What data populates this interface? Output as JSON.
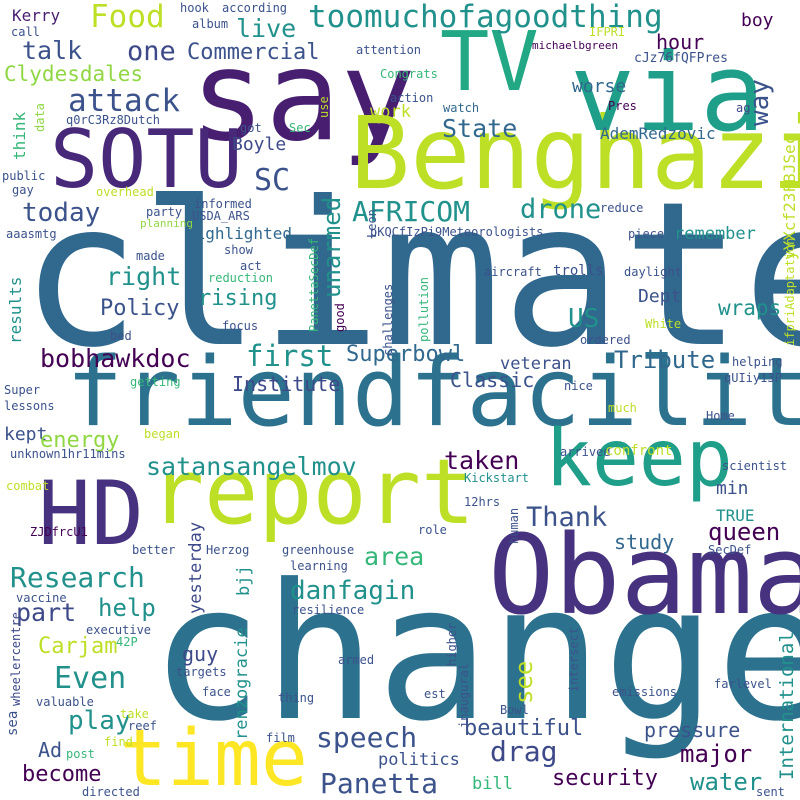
{
  "palette": {
    "dark_purple": "#440154",
    "indigo": "#3b528b",
    "blue": "#31688e",
    "teal": "#21918c",
    "green": "#35b779",
    "lime": "#90d743",
    "yellow": "#bddf26",
    "bright_yellow": "#fde725",
    "background": "#ffffff"
  },
  "words": {
    "climate": "climate",
    "change": "change",
    "friendfacility": "friendfacility",
    "obama": "Obama",
    "say": "say",
    "benghazi": "Benghazi",
    "via": "via",
    "tv": "TV",
    "report": "report",
    "time": "time",
    "sotu": "SOTU",
    "hd": "HD",
    "keep": "keep",
    "toomuchofagoodthing": "toomuchofagoodthing",
    "food": "Food",
    "live": "live",
    "talk": "talk",
    "one": "one",
    "commercial": "Commercial",
    "kerry": "Kerry",
    "clydesdales": "Clydesdales",
    "attack": "attack",
    "state": "State",
    "worse": "worse",
    "hour": "hour",
    "way": "way",
    "boy": "boy",
    "call": "call",
    "hook": "hook",
    "album": "album",
    "according": "according",
    "ifpri": "IFPRI",
    "michaelbgreen": "michaelbgreen",
    "cjz76fqfpres": "cJz76fQFPres",
    "attention": "attention",
    "congrats": "Congrats",
    "action": "action",
    "watch": "watch",
    "pres": "Pres",
    "ag": "ag",
    "q0rc3rz8dutch": "q0rC3Rz8Dutch",
    "work": "work",
    "ademredzovic": "AdemRedzovic",
    "yyxcf23fbjsec": "yYXcf23FBJSec",
    "think": "think",
    "data": "data",
    "use": "use",
    "got": "got",
    "sec": "Sec",
    "boyle": "Boyle",
    "sc": "SC",
    "unarmed": "unarmed",
    "public": "public",
    "gay": "gay",
    "overhead": "overhead",
    "informed": "informed",
    "usda_ars": "USDA_ARS",
    "today": "today",
    "africom": "AFRICOM",
    "drone": "drone",
    "party": "party",
    "planning": "planning",
    "aaasmtg": "aaasmtg",
    "highlighted": "highlighted",
    "leon": "Leon",
    "pkqcfizpi9meteorologists": "pKQCfIzPi9Meteorologists",
    "reduce": "reduce",
    "remember": "remember",
    "piece": "piece",
    "ifpriadaptation": "ifpriAdaptation",
    "made": "made",
    "show": "show",
    "right": "right",
    "act": "act",
    "trolls": "trolls",
    "aircraft": "aircraft",
    "daylight": "daylight",
    "reduction": "reduction",
    "rising": "rising",
    "panettasecdef": "PanettaSecDef",
    "good": "good",
    "challenges": "challenges",
    "pollution": "pollution",
    "dept": "Dept",
    "policy": "Policy",
    "wraps": "wraps",
    "results": "results",
    "us": "US",
    "ordered": "ordered",
    "white": "White",
    "bed": "bed",
    "focus": "focus",
    "first": "first",
    "superbowl": "Superbowl",
    "bobhawkdoc": "bobhawkdoc",
    "veteran": "veteran",
    "tribute": "Tribute",
    "helping": "helping",
    "getting": "getting",
    "institute": "Institute",
    "classic": "Classic",
    "quiiy13p": "qUIiy13P",
    "super": "Super",
    "lessons": "lessons",
    "nice": "nice",
    "much": "much",
    "home": "Home",
    "kept": "kept",
    "began": "began",
    "energy": "energy",
    "unknown1hr11mins": "unknown1hr11mins",
    "satansangelmov": "satansangelmov",
    "taken": "taken",
    "arrived": "arrived",
    "confront": "confront",
    "scientist": "scientist",
    "combat": "combat",
    "kickstart": "Kickstart",
    "min": "min",
    "thank": "Thank",
    "twelvehrs": "12hrs",
    "true": "TRUE",
    "queen": "queen",
    "role": "role",
    "study": "study",
    "zjdfrcu1": "ZJDfrcU1",
    "better": "better",
    "herzog": "Herzog",
    "greenhouse": "greenhouse",
    "human": "human",
    "secdef": "SecDef",
    "area": "area",
    "research": "Research",
    "yesterday": "yesterday",
    "renzogracie": "renzogracie",
    "bjj": "bjj",
    "learning": "learning",
    "resilience": "resilience",
    "international": "International",
    "danfagin": "danfagin",
    "sea": "sea",
    "wheelercentre": "wheelercentre",
    "vaccine": "vaccine",
    "part": "part",
    "help": "help",
    "see": "see",
    "executive": "executive",
    "carjam": "Carjam",
    "fortytwop": "42P",
    "guy": "guy",
    "targets": "targets",
    "armed": "armed",
    "higher": "higher",
    "intersect": "intersect",
    "even": "Even",
    "face": "face",
    "inaugural": "inaugural",
    "est": "est",
    "emissions": "emissions",
    "farlevel": "farlevel",
    "play": "play",
    "thing": "thing",
    "valuable": "valuable",
    "take": "take",
    "reef": "reef",
    "bowl": "Bowl",
    "beautiful": "beautiful",
    "speech": "speech",
    "drag": "drag",
    "pressure": "pressure",
    "ad": "Ad",
    "post": "post",
    "find": "find",
    "film": "film",
    "major": "major",
    "become": "become",
    "politics": "politics",
    "panetta": "Panetta",
    "security": "security",
    "water": "water",
    "bill": "bill",
    "directed": "directed",
    "sent": "sent"
  }
}
